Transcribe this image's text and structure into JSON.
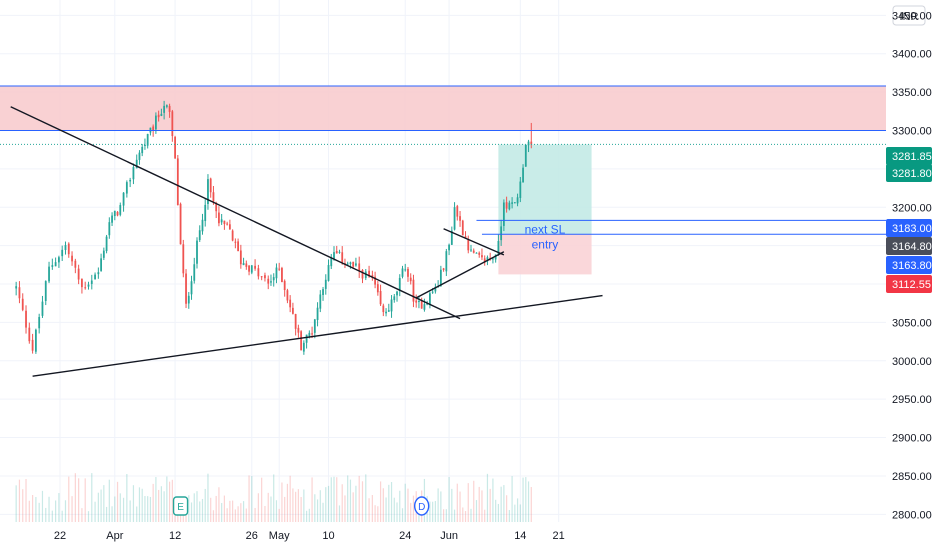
{
  "currency": "INR",
  "colors": {
    "up": "#26a69a",
    "down": "#ef5350",
    "resistance_zone": "#f8c9cb",
    "resistance_line": "#2962ff",
    "target_zone": "#bfe9e4",
    "stop_zone": "#f9d3d6",
    "trendline": "#131722",
    "grid": "#f0f3fa",
    "tag_blue": "#2962ff",
    "tag_gray": "#4a4e5a",
    "tag_red": "#f23645",
    "tag_green": "#089981"
  },
  "events": [
    {
      "label": "E",
      "icon": "earnings-icon",
      "color": "#26a69a"
    },
    {
      "label": "D",
      "icon": "dividend-icon",
      "color": "#2962ff"
    }
  ],
  "annotations": {
    "next_sl": "next SL",
    "entry": "entry"
  },
  "price_tags": [
    {
      "value": "3281.85",
      "color": "#089981"
    },
    {
      "value": "3281.80",
      "color": "#089981"
    },
    {
      "value": "3183.00",
      "color": "#2962ff"
    },
    {
      "value": "3164.80",
      "color": "#4a4e5a"
    },
    {
      "value": "3163.80",
      "color": "#2962ff"
    },
    {
      "value": "3112.55",
      "color": "#f23645"
    }
  ],
  "chart_data": {
    "type": "candlestick",
    "ylim": [
      2790,
      3470
    ],
    "y_ticks": [
      "3450.00",
      "3400.00",
      "3350.00",
      "3300.00",
      "3250.00",
      "3200.00",
      "3150.00",
      "3100.00",
      "3050.00",
      "3000.00",
      "2950.00",
      "2900.00",
      "2850.00",
      "2800.00"
    ],
    "x_ticks": [
      "22",
      "Apr",
      "12",
      "26",
      "May",
      "10",
      "24",
      "Jun",
      "14",
      "21"
    ],
    "levels": {
      "resistance_zone": [
        3300,
        3358
      ],
      "resistance_lines": [
        3300,
        3358
      ],
      "next_sl": 3183.0,
      "entry": 3164.8,
      "target": 3281.8,
      "stop": 3112.55,
      "last_price": 3281.85
    },
    "trendlines": [
      {
        "name": "descending-trendline",
        "from": [
          "Mar 13",
          3331
        ],
        "to": [
          "Jun 3",
          3055
        ]
      },
      {
        "name": "rising-support-trendline",
        "from": [
          "Mar 17",
          2980
        ],
        "to": [
          "Jun 29",
          3085
        ]
      },
      {
        "name": "wedge-upper-line",
        "from": [
          "May 31",
          3172
        ],
        "to": [
          "Jun 11",
          3138
        ]
      },
      {
        "name": "wedge-lower-line",
        "from": [
          "May 26",
          3082
        ],
        "to": [
          "Jun 11",
          3142
        ]
      }
    ],
    "anchors": [
      [
        "Mar 14",
        3095
      ],
      [
        "Mar 17",
        3015
      ],
      [
        "Mar 20",
        3120
      ],
      [
        "Mar 23",
        3150
      ],
      [
        "Mar 26",
        3095
      ],
      [
        "Mar 29",
        3115
      ],
      [
        "Mar 31",
        3180
      ],
      [
        "Apr 2",
        3200
      ],
      [
        "Apr 5",
        3265
      ],
      [
        "Apr 7",
        3290
      ],
      [
        "Apr 9",
        3320
      ],
      [
        "Apr 10",
        3335
      ],
      [
        "Apr 11",
        3320
      ],
      [
        "Apr 12",
        3260
      ],
      [
        "Apr 13",
        3150
      ],
      [
        "Apr 14",
        3070
      ],
      [
        "Apr 16",
        3150
      ],
      [
        "Apr 18",
        3230
      ],
      [
        "Apr 20",
        3180
      ],
      [
        "Apr 22",
        3170
      ],
      [
        "Apr 24",
        3130
      ],
      [
        "Apr 26",
        3120
      ],
      [
        "Apr 29",
        3100
      ],
      [
        "May 1",
        3120
      ],
      [
        "May 3",
        3070
      ],
      [
        "May 5",
        3020
      ],
      [
        "May 7",
        3040
      ],
      [
        "May 9",
        3100
      ],
      [
        "May 11",
        3140
      ],
      [
        "May 13",
        3130
      ],
      [
        "May 15",
        3120
      ],
      [
        "May 18",
        3105
      ],
      [
        "May 20",
        3060
      ],
      [
        "May 22",
        3080
      ],
      [
        "May 24",
        3125
      ],
      [
        "May 26",
        3070
      ],
      [
        "May 28",
        3080
      ],
      [
        "May 30",
        3100
      ],
      [
        "Jun 1",
        3150
      ],
      [
        "Jun 2",
        3200
      ],
      [
        "Jun 3",
        3180
      ],
      [
        "Jun 5",
        3140
      ],
      [
        "Jun 7",
        3130
      ],
      [
        "Jun 9",
        3135
      ],
      [
        "Jun 10",
        3150
      ],
      [
        "Jun 11",
        3210
      ],
      [
        "Jun 12",
        3200
      ],
      [
        "Jun 13",
        3205
      ],
      [
        "Jun 14",
        3230
      ],
      [
        "Jun 15",
        3285
      ],
      [
        "Jun 16",
        3281.85
      ]
    ]
  }
}
